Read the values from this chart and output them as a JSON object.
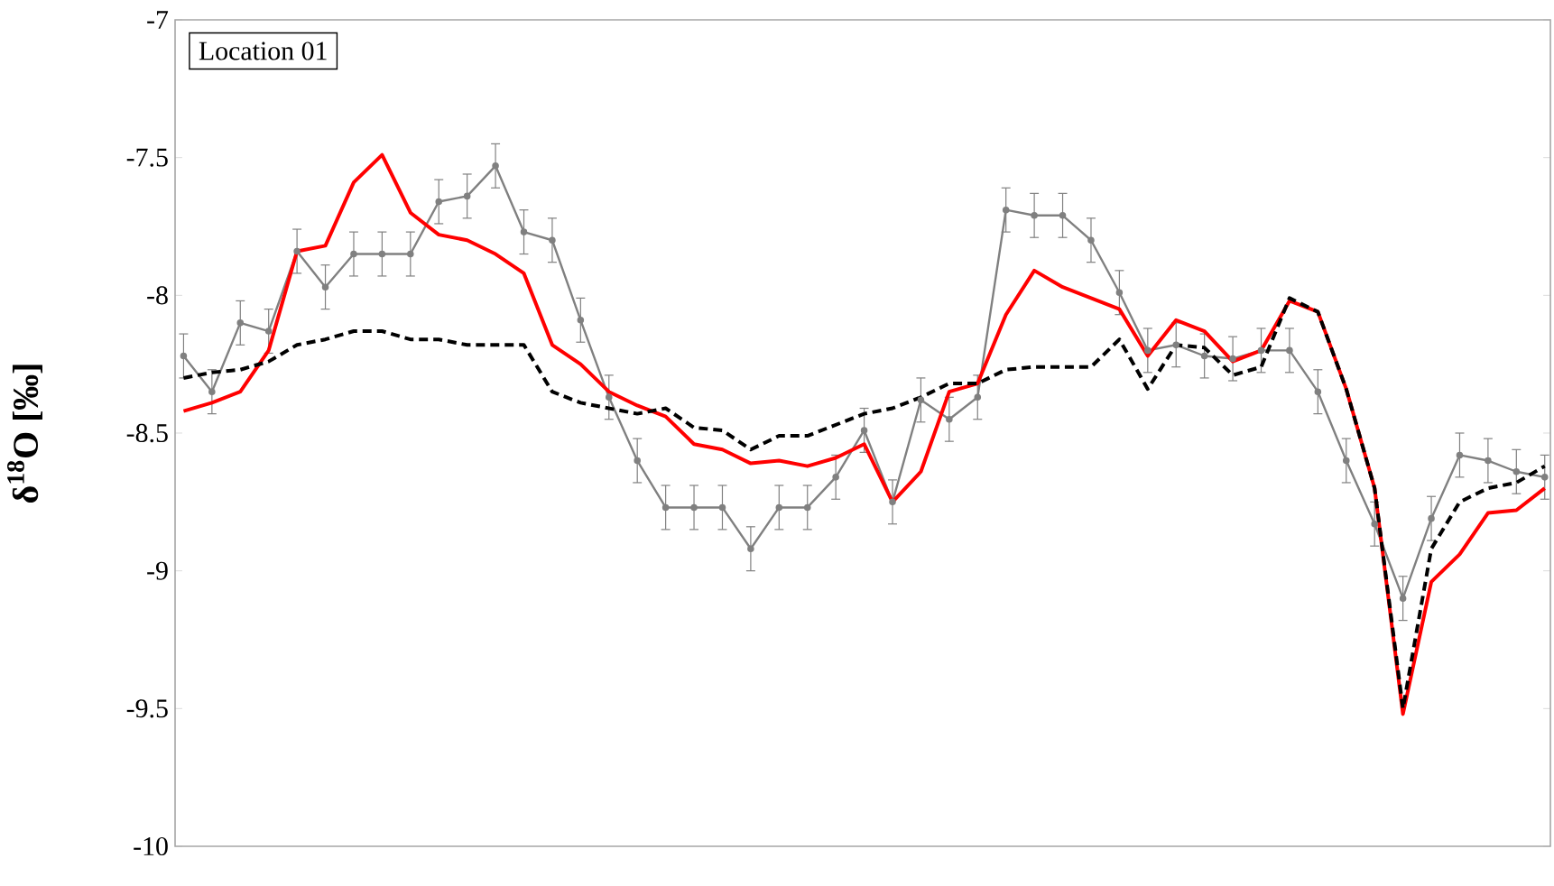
{
  "chart_data": {
    "type": "line",
    "ylabel": "δ$^{18}$O [‰]",
    "annotations": [
      "Location 01"
    ],
    "categories": [
      null,
      null,
      null,
      null,
      null,
      null,
      null,
      null,
      null,
      null,
      null,
      null,
      null,
      null,
      null,
      null,
      null,
      null,
      null,
      null,
      null,
      null,
      null,
      null,
      null,
      null,
      null,
      null,
      null,
      null,
      null,
      null,
      null,
      null,
      null,
      null,
      null,
      null,
      null,
      null,
      null,
      null,
      null,
      null,
      null,
      null,
      null,
      null,
      null
    ],
    "ylim": [
      -10,
      -7
    ],
    "yticks": [
      {
        "value": -10,
        "label": "-10"
      },
      {
        "value": -9.5,
        "label": "-9.5"
      },
      {
        "value": -9,
        "label": "-9"
      },
      {
        "value": -8.5,
        "label": "-8.5"
      },
      {
        "value": -8,
        "label": "-8"
      },
      {
        "value": -7.5,
        "label": "-7.5"
      },
      {
        "value": -7,
        "label": "-7"
      }
    ],
    "tick_labels": "y",
    "grid": false,
    "series": [
      {
        "color": "#808080",
        "marker": "circle",
        "line_style": "solid",
        "values": [
          -8.22,
          -8.35,
          -8.1,
          -8.13,
          -7.84,
          -7.97,
          -7.85,
          -7.85,
          -7.85,
          -7.66,
          -7.64,
          -7.53,
          -7.77,
          -7.8,
          -8.09,
          -8.37,
          -8.6,
          -8.77,
          -8.77,
          -8.77,
          -8.92,
          -8.77,
          -8.77,
          -8.66,
          -8.49,
          -8.75,
          -8.38,
          -8.45,
          -8.37,
          -7.69,
          -7.71,
          -7.71,
          -7.8,
          -7.99,
          -8.2,
          -8.18,
          -8.22,
          -8.23,
          -8.2,
          -8.2,
          -8.35,
          -8.6,
          -8.83,
          -9.1,
          -8.81,
          -8.58,
          -8.6,
          -8.64,
          -8.66
        ],
        "errors": [
          0.08,
          0.08,
          0.08,
          0.08,
          0.08,
          0.08,
          0.08,
          0.08,
          0.08,
          0.08,
          0.08,
          0.08,
          0.08,
          0.08,
          0.08,
          0.08,
          0.08,
          0.08,
          0.08,
          0.08,
          0.08,
          0.08,
          0.08,
          0.08,
          0.08,
          0.08,
          0.08,
          0.08,
          0.08,
          0.08,
          0.08,
          0.08,
          0.08,
          0.08,
          0.08,
          0.08,
          0.08,
          0.08,
          0.08,
          0.08,
          0.08,
          0.08,
          0.08,
          0.08,
          0.08,
          0.08,
          0.08,
          0.08,
          0.08
        ]
      },
      {
        "color": "#ff0000",
        "marker": "none",
        "line_style": "solid",
        "values": [
          -8.42,
          -8.39,
          -8.35,
          -8.2,
          -7.84,
          -7.82,
          -7.59,
          -7.49,
          -7.7,
          -7.78,
          -7.8,
          -7.85,
          -7.92,
          -8.18,
          -8.25,
          -8.35,
          -8.4,
          -8.44,
          -8.54,
          -8.56,
          -8.61,
          -8.6,
          -8.62,
          -8.59,
          -8.54,
          -8.75,
          -8.64,
          -8.35,
          -8.32,
          -8.07,
          -7.91,
          -7.97,
          -8.01,
          -8.05,
          -8.22,
          -8.09,
          -8.13,
          -8.24,
          -8.2,
          -8.02,
          -8.06,
          -8.34,
          -8.7,
          -9.52,
          -9.04,
          -8.94,
          -8.79,
          -8.78,
          -8.7
        ]
      },
      {
        "color": "#000000",
        "marker": "none",
        "line_style": "dashed",
        "values": [
          -8.3,
          -8.28,
          -8.27,
          -8.24,
          -8.18,
          -8.16,
          -8.13,
          -8.13,
          -8.16,
          -8.16,
          -8.18,
          -8.18,
          -8.18,
          -8.35,
          -8.39,
          -8.41,
          -8.43,
          -8.41,
          -8.48,
          -8.49,
          -8.56,
          -8.51,
          -8.51,
          -8.47,
          -8.43,
          -8.41,
          -8.37,
          -8.32,
          -8.32,
          -8.27,
          -8.26,
          -8.26,
          -8.26,
          -8.16,
          -8.34,
          -8.18,
          -8.19,
          -8.29,
          -8.26,
          -8.01,
          -8.06,
          -8.34,
          -8.7,
          -9.5,
          -8.92,
          -8.75,
          -8.7,
          -8.68,
          -8.62
        ]
      }
    ]
  }
}
